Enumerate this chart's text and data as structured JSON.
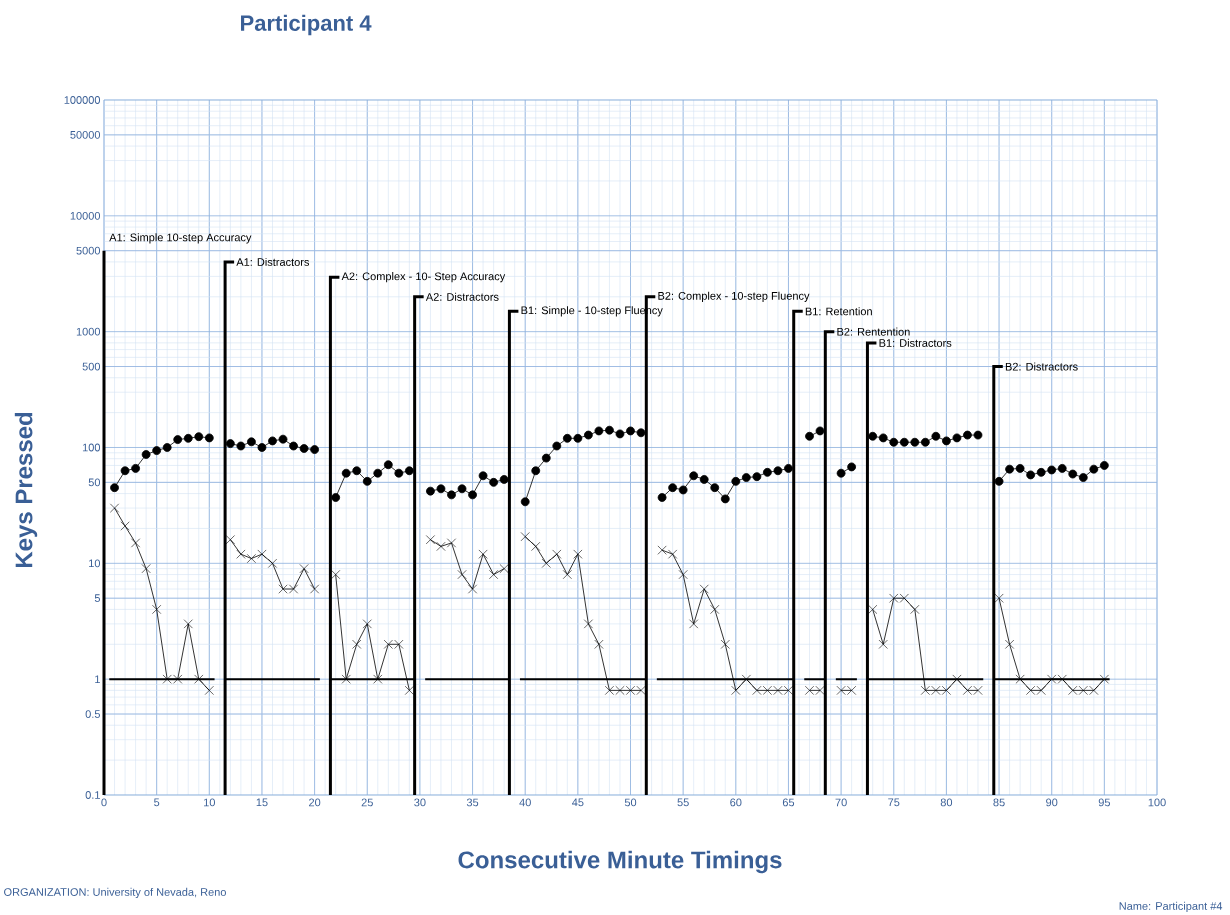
{
  "chart_data": {
    "type": "line",
    "title": "Participant 4",
    "xlabel": "Consecutive Minute Timings",
    "ylabel": "Keys Pressed",
    "annotations": [
      "ORGANIZATION: University of Nevada, Reno",
      "Name: Participant #4"
    ],
    "x": [
      1,
      2,
      3,
      4,
      5,
      6,
      7,
      8,
      9,
      10,
      11,
      12,
      13,
      14,
      15,
      16,
      17,
      18,
      19,
      20,
      21,
      22,
      23,
      24,
      25,
      26,
      27,
      28,
      29,
      30,
      31,
      32,
      33,
      34,
      35,
      36,
      37,
      38,
      39,
      40,
      41,
      42,
      43,
      44,
      45,
      46,
      47,
      48,
      49,
      50,
      51,
      52,
      53,
      54,
      55,
      56,
      57,
      58,
      59,
      60,
      61,
      62,
      63,
      64,
      65,
      66,
      67,
      68,
      69,
      70,
      71,
      72,
      73,
      74,
      75,
      76,
      77,
      78,
      79,
      80,
      81,
      82,
      83,
      84,
      85,
      86,
      87,
      88,
      89,
      90,
      91,
      92,
      93,
      94,
      95
    ],
    "series": [
      {
        "color": "#000000",
        "marker": "circle",
        "values": [
          45,
          63,
          66,
          87,
          94,
          100,
          117,
          120,
          124,
          121,
          null,
          108,
          103,
          112,
          100,
          114,
          118,
          103,
          98,
          96,
          null,
          37,
          60,
          63,
          51,
          60,
          71,
          60,
          63,
          null,
          42,
          44,
          39,
          44,
          39,
          57,
          50,
          53,
          null,
          34,
          63,
          81,
          103,
          120,
          120,
          128,
          139,
          141,
          131,
          139,
          134,
          null,
          37,
          45,
          43,
          57,
          53,
          45,
          36,
          51,
          55,
          56,
          61,
          63,
          66,
          null,
          125,
          139,
          null,
          60,
          68,
          null,
          125,
          121,
          111,
          111,
          111,
          111,
          125,
          114,
          121,
          128,
          128,
          null,
          51,
          65,
          66,
          58,
          61,
          64,
          66,
          59,
          55,
          65,
          70
        ]
      },
      {
        "color": "#000000",
        "marker": "cross",
        "values": [
          30,
          21,
          15,
          9,
          4,
          1,
          1,
          3,
          1,
          0.8,
          null,
          16,
          12,
          11,
          12,
          10,
          6,
          6,
          9,
          6,
          null,
          8,
          1,
          2,
          3,
          1,
          2,
          2,
          0.8,
          null,
          16,
          14,
          15,
          8,
          6,
          12,
          8,
          9,
          null,
          17,
          14,
          10,
          12,
          8,
          12,
          3,
          2,
          0.8,
          0.8,
          0.8,
          0.8,
          null,
          13,
          12,
          8,
          3,
          6,
          4,
          2,
          0.8,
          1,
          0.8,
          0.8,
          0.8,
          0.8,
          null,
          0.8,
          0.8,
          null,
          0.8,
          0.8,
          null,
          4,
          2,
          5,
          5,
          4,
          0.8,
          0.8,
          0.8,
          1,
          0.8,
          0.8,
          null,
          5,
          2,
          1,
          0.8,
          0.8,
          1,
          1,
          0.8,
          0.8,
          0.8,
          1
        ]
      },
      {
        "color": "#000000",
        "marker": "none",
        "x": [
          0.5,
          10.5,
          11,
          11.5,
          20.5,
          21,
          21.5,
          29.5,
          30,
          30.5,
          38.5,
          39,
          39.5,
          51.5,
          52,
          52.5,
          65.5,
          66,
          66.5,
          68.5,
          69,
          69.5,
          71.5,
          72,
          72.5,
          83.5,
          84,
          84.5,
          95.5
        ],
        "values": [
          1,
          1,
          null,
          1,
          1,
          null,
          1,
          1,
          null,
          1,
          1,
          null,
          1,
          1,
          null,
          1,
          1,
          null,
          1,
          1,
          null,
          1,
          1,
          null,
          1,
          1,
          null,
          1,
          1
        ]
      }
    ],
    "ref_lines": [
      {
        "axis": "x",
        "value": 0,
        "label": "A1: Simple 10-step Accuracy"
      },
      {
        "axis": "x",
        "value": 11.5,
        "label": "A1: Distractors"
      },
      {
        "axis": "x",
        "value": 21.5,
        "label": "A2: Complex - 10- Step Accuracy"
      },
      {
        "axis": "x",
        "value": 29.5,
        "label": "A2: Distractors"
      },
      {
        "axis": "x",
        "value": 38.5,
        "label": "B1: Simple - 10-step Fluency"
      },
      {
        "axis": "x",
        "value": 51.5,
        "label": "B2: Complex - 10-step Fluency"
      },
      {
        "axis": "x",
        "value": 65.5,
        "label": "B1: Retention"
      },
      {
        "axis": "x",
        "value": 68.5,
        "label": "B2: Rentention"
      },
      {
        "axis": "x",
        "value": 72.5,
        "label": "B1: Distractors"
      },
      {
        "axis": "x",
        "value": 84.5,
        "label": "B2: Distractors"
      }
    ],
    "xlim": [
      0,
      100
    ],
    "xticks": [
      0,
      5,
      10,
      15,
      20,
      25,
      30,
      35,
      40,
      45,
      50,
      55,
      60,
      65,
      70,
      75,
      80,
      85,
      90,
      95,
      100
    ],
    "ylim": [
      0.1,
      100000
    ],
    "yticks": [
      0.1,
      0.5,
      1,
      5,
      10,
      50,
      100,
      500,
      1000,
      5000,
      10000,
      50000,
      100000
    ],
    "log": "y",
    "grid": true
  }
}
